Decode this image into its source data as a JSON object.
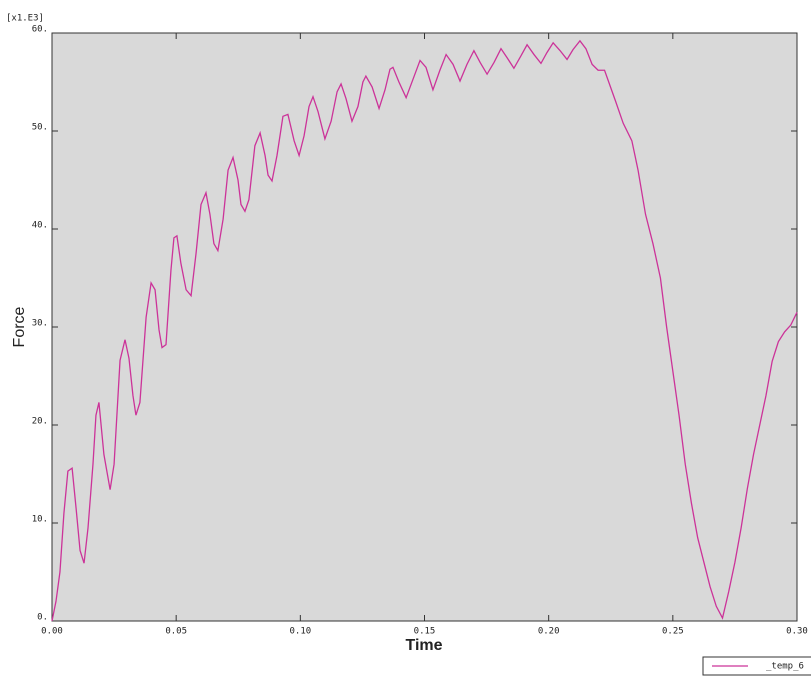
{
  "chart_data": {
    "type": "line",
    "xlabel": "Time",
    "ylabel": "Force",
    "y_multiplier": "[x1.E3]",
    "background": "#d9d9d9",
    "xlim": [
      0,
      0.3
    ],
    "ylim": [
      0,
      60
    ],
    "xticks": [
      {
        "value": 0,
        "label": "0.00"
      },
      {
        "value": 0.05,
        "label": "0.05"
      },
      {
        "value": 0.1,
        "label": "0.10"
      },
      {
        "value": 0.15,
        "label": "0.15"
      },
      {
        "value": 0.2,
        "label": "0.20"
      },
      {
        "value": 0.25,
        "label": "0.25"
      },
      {
        "value": 0.3,
        "label": "0.30"
      }
    ],
    "yticks": [
      {
        "value": 0,
        "label": "0."
      },
      {
        "value": 10,
        "label": "10."
      },
      {
        "value": 20,
        "label": "20."
      },
      {
        "value": 30,
        "label": "30."
      },
      {
        "value": 40,
        "label": "40."
      },
      {
        "value": 50,
        "label": "50."
      },
      {
        "value": 60,
        "label": "60."
      }
    ],
    "x": [
      0,
      0.0016,
      0.0032,
      0.0048,
      0.0064,
      0.0081,
      0.0097,
      0.0113,
      0.0129,
      0.0145,
      0.0165,
      0.0177,
      0.0189,
      0.0209,
      0.0234,
      0.025,
      0.0274,
      0.0294,
      0.031,
      0.0326,
      0.0338,
      0.0354,
      0.0379,
      0.0399,
      0.0415,
      0.0431,
      0.0443,
      0.0459,
      0.0479,
      0.0491,
      0.0503,
      0.0519,
      0.054,
      0.056,
      0.058,
      0.06,
      0.062,
      0.0636,
      0.0652,
      0.0668,
      0.0689,
      0.0709,
      0.0729,
      0.0749,
      0.0761,
      0.0777,
      0.0793,
      0.0817,
      0.0838,
      0.0858,
      0.087,
      0.0886,
      0.0906,
      0.093,
      0.095,
      0.0975,
      0.0995,
      0.1015,
      0.1035,
      0.1051,
      0.1071,
      0.1099,
      0.1124,
      0.1148,
      0.1164,
      0.1184,
      0.1208,
      0.1232,
      0.1252,
      0.1264,
      0.1289,
      0.1317,
      0.1341,
      0.1361,
      0.1373,
      0.1397,
      0.1426,
      0.1454,
      0.1482,
      0.1506,
      0.1534,
      0.1562,
      0.1587,
      0.1615,
      0.1643,
      0.1671,
      0.1699,
      0.1724,
      0.1752,
      0.178,
      0.1808,
      0.1832,
      0.186,
      0.1889,
      0.1913,
      0.1941,
      0.1969,
      0.1993,
      0.2018,
      0.2046,
      0.2074,
      0.2098,
      0.2126,
      0.215,
      0.2175,
      0.2199,
      0.2225,
      0.227,
      0.23,
      0.2335,
      0.236,
      0.239,
      0.242,
      0.245,
      0.2475,
      0.25,
      0.2525,
      0.255,
      0.2575,
      0.26,
      0.2625,
      0.265,
      0.2675,
      0.27,
      0.2725,
      0.275,
      0.2775,
      0.28,
      0.2825,
      0.285,
      0.2875,
      0.29,
      0.2925,
      0.295,
      0.2975,
      0.3
    ],
    "series": [
      {
        "name": "_temp_6",
        "color": "#cc3399",
        "values": [
          0,
          2,
          5,
          11,
          15.3,
          15.6,
          11.5,
          7.2,
          5.9,
          9.5,
          16,
          21,
          22.3,
          17,
          13.4,
          16,
          26.6,
          28.7,
          26.8,
          23,
          21,
          22.3,
          31,
          34.5,
          33.8,
          29.7,
          27.9,
          28.2,
          35.8,
          39.1,
          39.3,
          36.5,
          33.8,
          33.2,
          37.5,
          42.5,
          43.7,
          41.5,
          38.5,
          37.8,
          41,
          46,
          47.3,
          45,
          42.5,
          41.8,
          43,
          48.5,
          49.8,
          47.5,
          45.5,
          44.9,
          47.5,
          51.5,
          51.7,
          49,
          47.5,
          49.5,
          52.5,
          53.5,
          52,
          49.2,
          51,
          54,
          54.8,
          53.3,
          51,
          52.5,
          55,
          55.6,
          54.5,
          52.3,
          54.2,
          56.3,
          56.5,
          55,
          53.4,
          55.3,
          57.2,
          56.5,
          54.2,
          56.2,
          57.8,
          56.8,
          55.1,
          56.8,
          58.2,
          57,
          55.8,
          57,
          58.4,
          57.5,
          56.4,
          57.7,
          58.8,
          57.8,
          56.9,
          58,
          59,
          58.2,
          57.3,
          58.3,
          59.2,
          58.4,
          56.8,
          56.2,
          56.2,
          53,
          50.8,
          49,
          46,
          41.5,
          38.5,
          35,
          30,
          25.5,
          21,
          16,
          12,
          8.5,
          6,
          3.5,
          1.5,
          0.3,
          3,
          6,
          9.5,
          13.5,
          17,
          20,
          23,
          26.5,
          28.5,
          29.5,
          30.2,
          31.5
        ]
      }
    ]
  }
}
